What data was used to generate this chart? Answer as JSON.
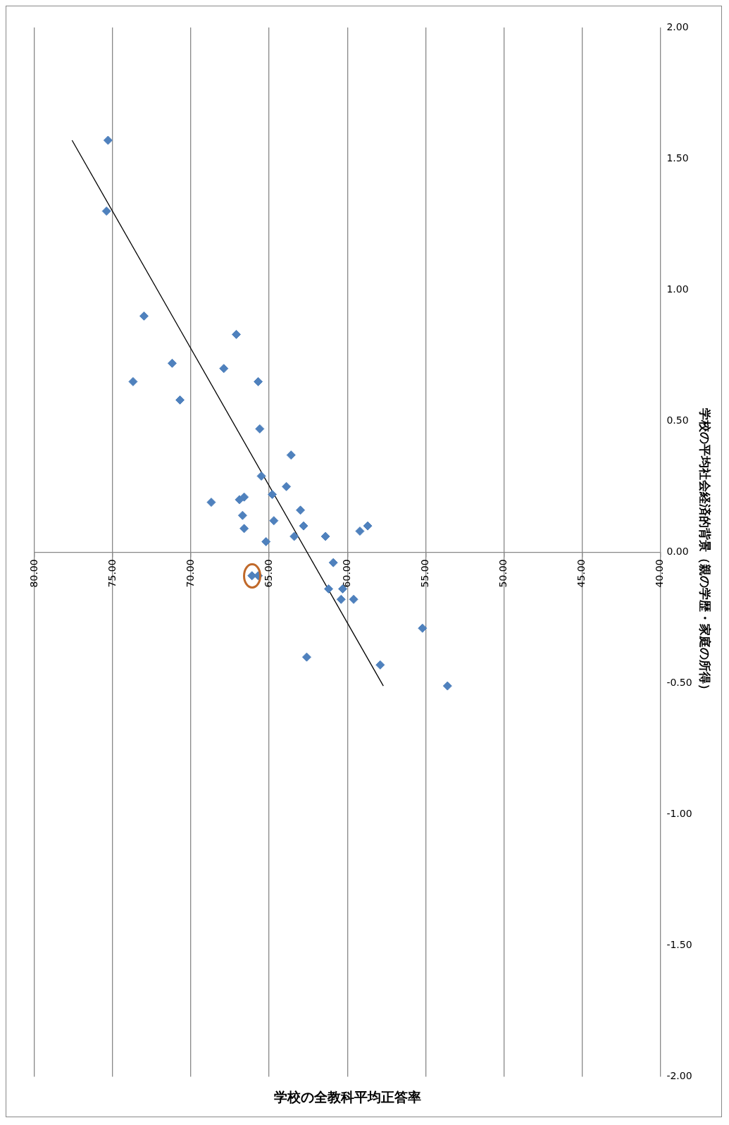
{
  "chart_data": {
    "type": "scatter",
    "xlabel": "学校の全教科平均正答率",
    "ylabel": "学校の平均社会経済的背景（親の学歴・家庭の所得）",
    "xlim": [
      80,
      40
    ],
    "ylim": [
      -2,
      2
    ],
    "xticks": [
      {
        "value": 80,
        "label": "80.00"
      },
      {
        "value": 75,
        "label": "75.00"
      },
      {
        "value": 70,
        "label": "70.00"
      },
      {
        "value": 65,
        "label": "65.00"
      },
      {
        "value": 60,
        "label": "60.00"
      },
      {
        "value": 55,
        "label": "55.00"
      },
      {
        "value": 50,
        "label": "50.00"
      },
      {
        "value": 45,
        "label": "45.00"
      },
      {
        "value": 40,
        "label": "40.00"
      }
    ],
    "yticks": [
      {
        "value": -2,
        "label": "-2.00"
      },
      {
        "value": -1.5,
        "label": "-1.50"
      },
      {
        "value": -1,
        "label": "-1.00"
      },
      {
        "value": -0.5,
        "label": "-0.50"
      },
      {
        "value": 0,
        "label": "0.00"
      },
      {
        "value": 0.5,
        "label": "0.50"
      },
      {
        "value": 1,
        "label": "1.00"
      },
      {
        "value": 1.5,
        "label": "1.50"
      },
      {
        "value": 2,
        "label": "2.00"
      }
    ],
    "grid": "x",
    "legend": false,
    "series": [
      {
        "color": "#4f81bd",
        "marker": "diamond",
        "x": [
          75.3,
          75.4,
          73.0,
          67.1,
          71.2,
          67.9,
          73.7,
          65.7,
          70.7,
          65.6,
          63.6,
          65.5,
          63.9,
          68.7,
          66.9,
          66.6,
          64.8,
          63.0,
          66.7,
          64.7,
          62.8,
          66.6,
          58.7,
          59.2,
          63.4,
          61.4,
          65.2,
          60.9,
          66.1,
          65.7,
          61.2,
          60.3,
          60.4,
          59.6,
          55.2,
          62.6,
          57.9,
          53.6
        ],
        "values": [
          1.57,
          1.3,
          0.9,
          0.83,
          0.72,
          0.7,
          0.65,
          0.65,
          0.58,
          0.47,
          0.37,
          0.29,
          0.25,
          0.19,
          0.2,
          0.21,
          0.22,
          0.16,
          0.14,
          0.12,
          0.1,
          0.09,
          0.1,
          0.08,
          0.06,
          0.06,
          0.04,
          -0.04,
          -0.09,
          -0.09,
          -0.14,
          -0.14,
          -0.18,
          -0.18,
          -0.29,
          -0.4,
          -0.43,
          -0.51
        ]
      },
      {
        "type": "line",
        "color": "#000000",
        "marker": "none",
        "x": [
          77.6,
          57.7
        ],
        "values": [
          1.57,
          -0.51
        ]
      }
    ]
  }
}
